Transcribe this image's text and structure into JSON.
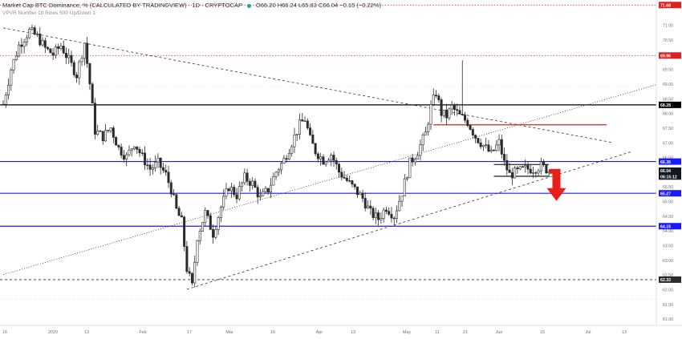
{
  "header": {
    "title": "Market Cap BTC Dominance, % (CALCULATED BY TRADINGVIEW) · 1D · CRYPTOCAP",
    "ohlc": "O66.20 H66.24 L65.83 C66.04 −0.15 (−0.22%)",
    "indicator": "VPVR Number Of Rows 500 Up/Down 1"
  },
  "colors": {
    "up": "#2b2b2b",
    "down": "#2b2b2b",
    "blue_level": "#1a1aff",
    "red_level": "#e0201f",
    "black_level": "#000000",
    "arrow": "#e8201c",
    "axis_text": "#6b6f76"
  },
  "price_axis": {
    "ticks": [
      "71.00",
      "70.50",
      "70.00",
      "69.50",
      "69.00",
      "68.50",
      "68.00",
      "67.50",
      "67.00",
      "66.50",
      "66.00",
      "65.50",
      "65.00",
      "64.50",
      "64.00",
      "63.50",
      "63.00",
      "62.50",
      "62.00",
      "61.50",
      "61.00"
    ],
    "badges": [
      {
        "label": "71.68",
        "color": "#e0201f",
        "value": 71.68
      },
      {
        "label": "69.96",
        "color": "#e0201f",
        "value": 69.96
      },
      {
        "label": "68.28",
        "color": "#000000",
        "value": 68.28
      },
      {
        "label": "66.35",
        "color": "#1a1aff",
        "value": 66.35
      },
      {
        "label": "66.04",
        "color": "#131722",
        "value": 66.04
      },
      {
        "label": "06:15:12",
        "color": "#131722",
        "value": 65.84
      },
      {
        "label": "65.27",
        "color": "#1a1aff",
        "value": 65.27
      },
      {
        "label": "64.15",
        "color": "#1a1aff",
        "value": 64.15
      },
      {
        "label": "62.33",
        "color": "#2b2b2b",
        "value": 62.33
      }
    ]
  },
  "time_axis": {
    "labels": [
      "16",
      "2020",
      "13",
      "Feb",
      "17",
      "Mar",
      "16",
      "Apr",
      "13",
      "May",
      "11",
      "21",
      "Jun",
      "15",
      "Jul",
      "13"
    ]
  },
  "chart_data": {
    "type": "candlestick",
    "symbol": "CRYPTOCAP:BTC.D",
    "interval": "1D",
    "ylim": [
      60.8,
      71.85
    ],
    "x_axis_labels": [
      "16",
      "2020",
      "13",
      "Feb",
      "17",
      "Mar",
      "16",
      "Apr",
      "13",
      "May",
      "11",
      "21",
      "Jun",
      "15",
      "Jul",
      "13"
    ],
    "last": {
      "open": 66.2,
      "high": 66.24,
      "low": 65.83,
      "close": 66.04,
      "change": -0.15,
      "change_pct": -0.22
    },
    "horizontal_levels": [
      {
        "value": 71.68,
        "style": "dotted",
        "color": "#e0201f"
      },
      {
        "value": 69.96,
        "style": "dotted",
        "color": "#e0201f"
      },
      {
        "value": 68.28,
        "style": "solid",
        "color": "#000000"
      },
      {
        "value": 66.35,
        "style": "solid",
        "color": "#1a1aff"
      },
      {
        "value": 65.27,
        "style": "solid",
        "color": "#1a1aff"
      },
      {
        "value": 64.15,
        "style": "solid",
        "color": "#1a1aff"
      },
      {
        "value": 62.33,
        "style": "dashed",
        "color": "#2b2b2b"
      }
    ],
    "close_path": [
      [
        0,
        68.3
      ],
      [
        3,
        69.5
      ],
      [
        6,
        70.3
      ],
      [
        10,
        70.8
      ],
      [
        13,
        70.6
      ],
      [
        16,
        70.2
      ],
      [
        19,
        70.0
      ],
      [
        22,
        70.3
      ],
      [
        25,
        69.8
      ],
      [
        28,
        69.3
      ],
      [
        31,
        70.4
      ],
      [
        33,
        69.0
      ],
      [
        35,
        67.4
      ],
      [
        38,
        67.2
      ],
      [
        41,
        67.5
      ],
      [
        44,
        66.8
      ],
      [
        47,
        66.5
      ],
      [
        50,
        67.0
      ],
      [
        53,
        66.5
      ],
      [
        56,
        66.1
      ],
      [
        59,
        66.3
      ],
      [
        62,
        65.9
      ],
      [
        64,
        65.4
      ],
      [
        66,
        64.7
      ],
      [
        68,
        64.3
      ],
      [
        70,
        62.7
      ],
      [
        72,
        62.1
      ],
      [
        74,
        63.8
      ],
      [
        77,
        64.6
      ],
      [
        80,
        63.9
      ],
      [
        83,
        64.8
      ],
      [
        86,
        65.5
      ],
      [
        89,
        65.2
      ],
      [
        92,
        65.8
      ],
      [
        95,
        65.6
      ],
      [
        98,
        65.1
      ],
      [
        101,
        65.4
      ],
      [
        104,
        66.0
      ],
      [
        107,
        66.4
      ],
      [
        110,
        67.0
      ],
      [
        113,
        67.6
      ],
      [
        115,
        67.8
      ],
      [
        117,
        67.1
      ],
      [
        119,
        66.7
      ],
      [
        122,
        66.4
      ],
      [
        125,
        66.6
      ],
      [
        128,
        66.0
      ],
      [
        131,
        65.7
      ],
      [
        134,
        65.4
      ],
      [
        137,
        65.1
      ],
      [
        140,
        64.6
      ],
      [
        143,
        64.4
      ],
      [
        146,
        64.8
      ],
      [
        149,
        64.5
      ],
      [
        152,
        65.3
      ],
      [
        155,
        66.3
      ],
      [
        158,
        66.7
      ],
      [
        161,
        67.3
      ],
      [
        163,
        68.2
      ],
      [
        165,
        68.7
      ],
      [
        167,
        68.0
      ],
      [
        169,
        67.9
      ],
      [
        171,
        68.2
      ],
      [
        174,
        67.9
      ],
      [
        177,
        67.7
      ],
      [
        180,
        67.2
      ],
      [
        183,
        66.9
      ],
      [
        186,
        66.6
      ],
      [
        189,
        67.0
      ],
      [
        191,
        66.3
      ],
      [
        193,
        65.9
      ],
      [
        196,
        66.0
      ],
      [
        199,
        66.1
      ],
      [
        202,
        66.1
      ],
      [
        205,
        66.2
      ],
      [
        208,
        66.04
      ]
    ],
    "annotations": [
      {
        "kind": "trendline",
        "style": "dashed",
        "from": [
          0,
          70.9
        ],
        "to": [
          232,
          67.0
        ]
      },
      {
        "kind": "trendline",
        "style": "dotted",
        "from": [
          0,
          62.5
        ],
        "to": [
          254,
          69.1
        ]
      },
      {
        "kind": "trendline",
        "style": "dashed",
        "from": [
          70,
          62.0
        ],
        "to": [
          240,
          66.7
        ]
      },
      {
        "kind": "segment",
        "color": "#e0201f",
        "from": [
          164,
          67.6
        ],
        "to": [
          230,
          67.6
        ]
      },
      {
        "kind": "range_box",
        "from": [
          187,
          65.85
        ],
        "to": [
          208,
          66.25
        ]
      },
      {
        "kind": "arrow",
        "direction": "down",
        "color": "#e8201c",
        "at": [
          213,
          66.1
        ]
      }
    ],
    "grid": false
  }
}
